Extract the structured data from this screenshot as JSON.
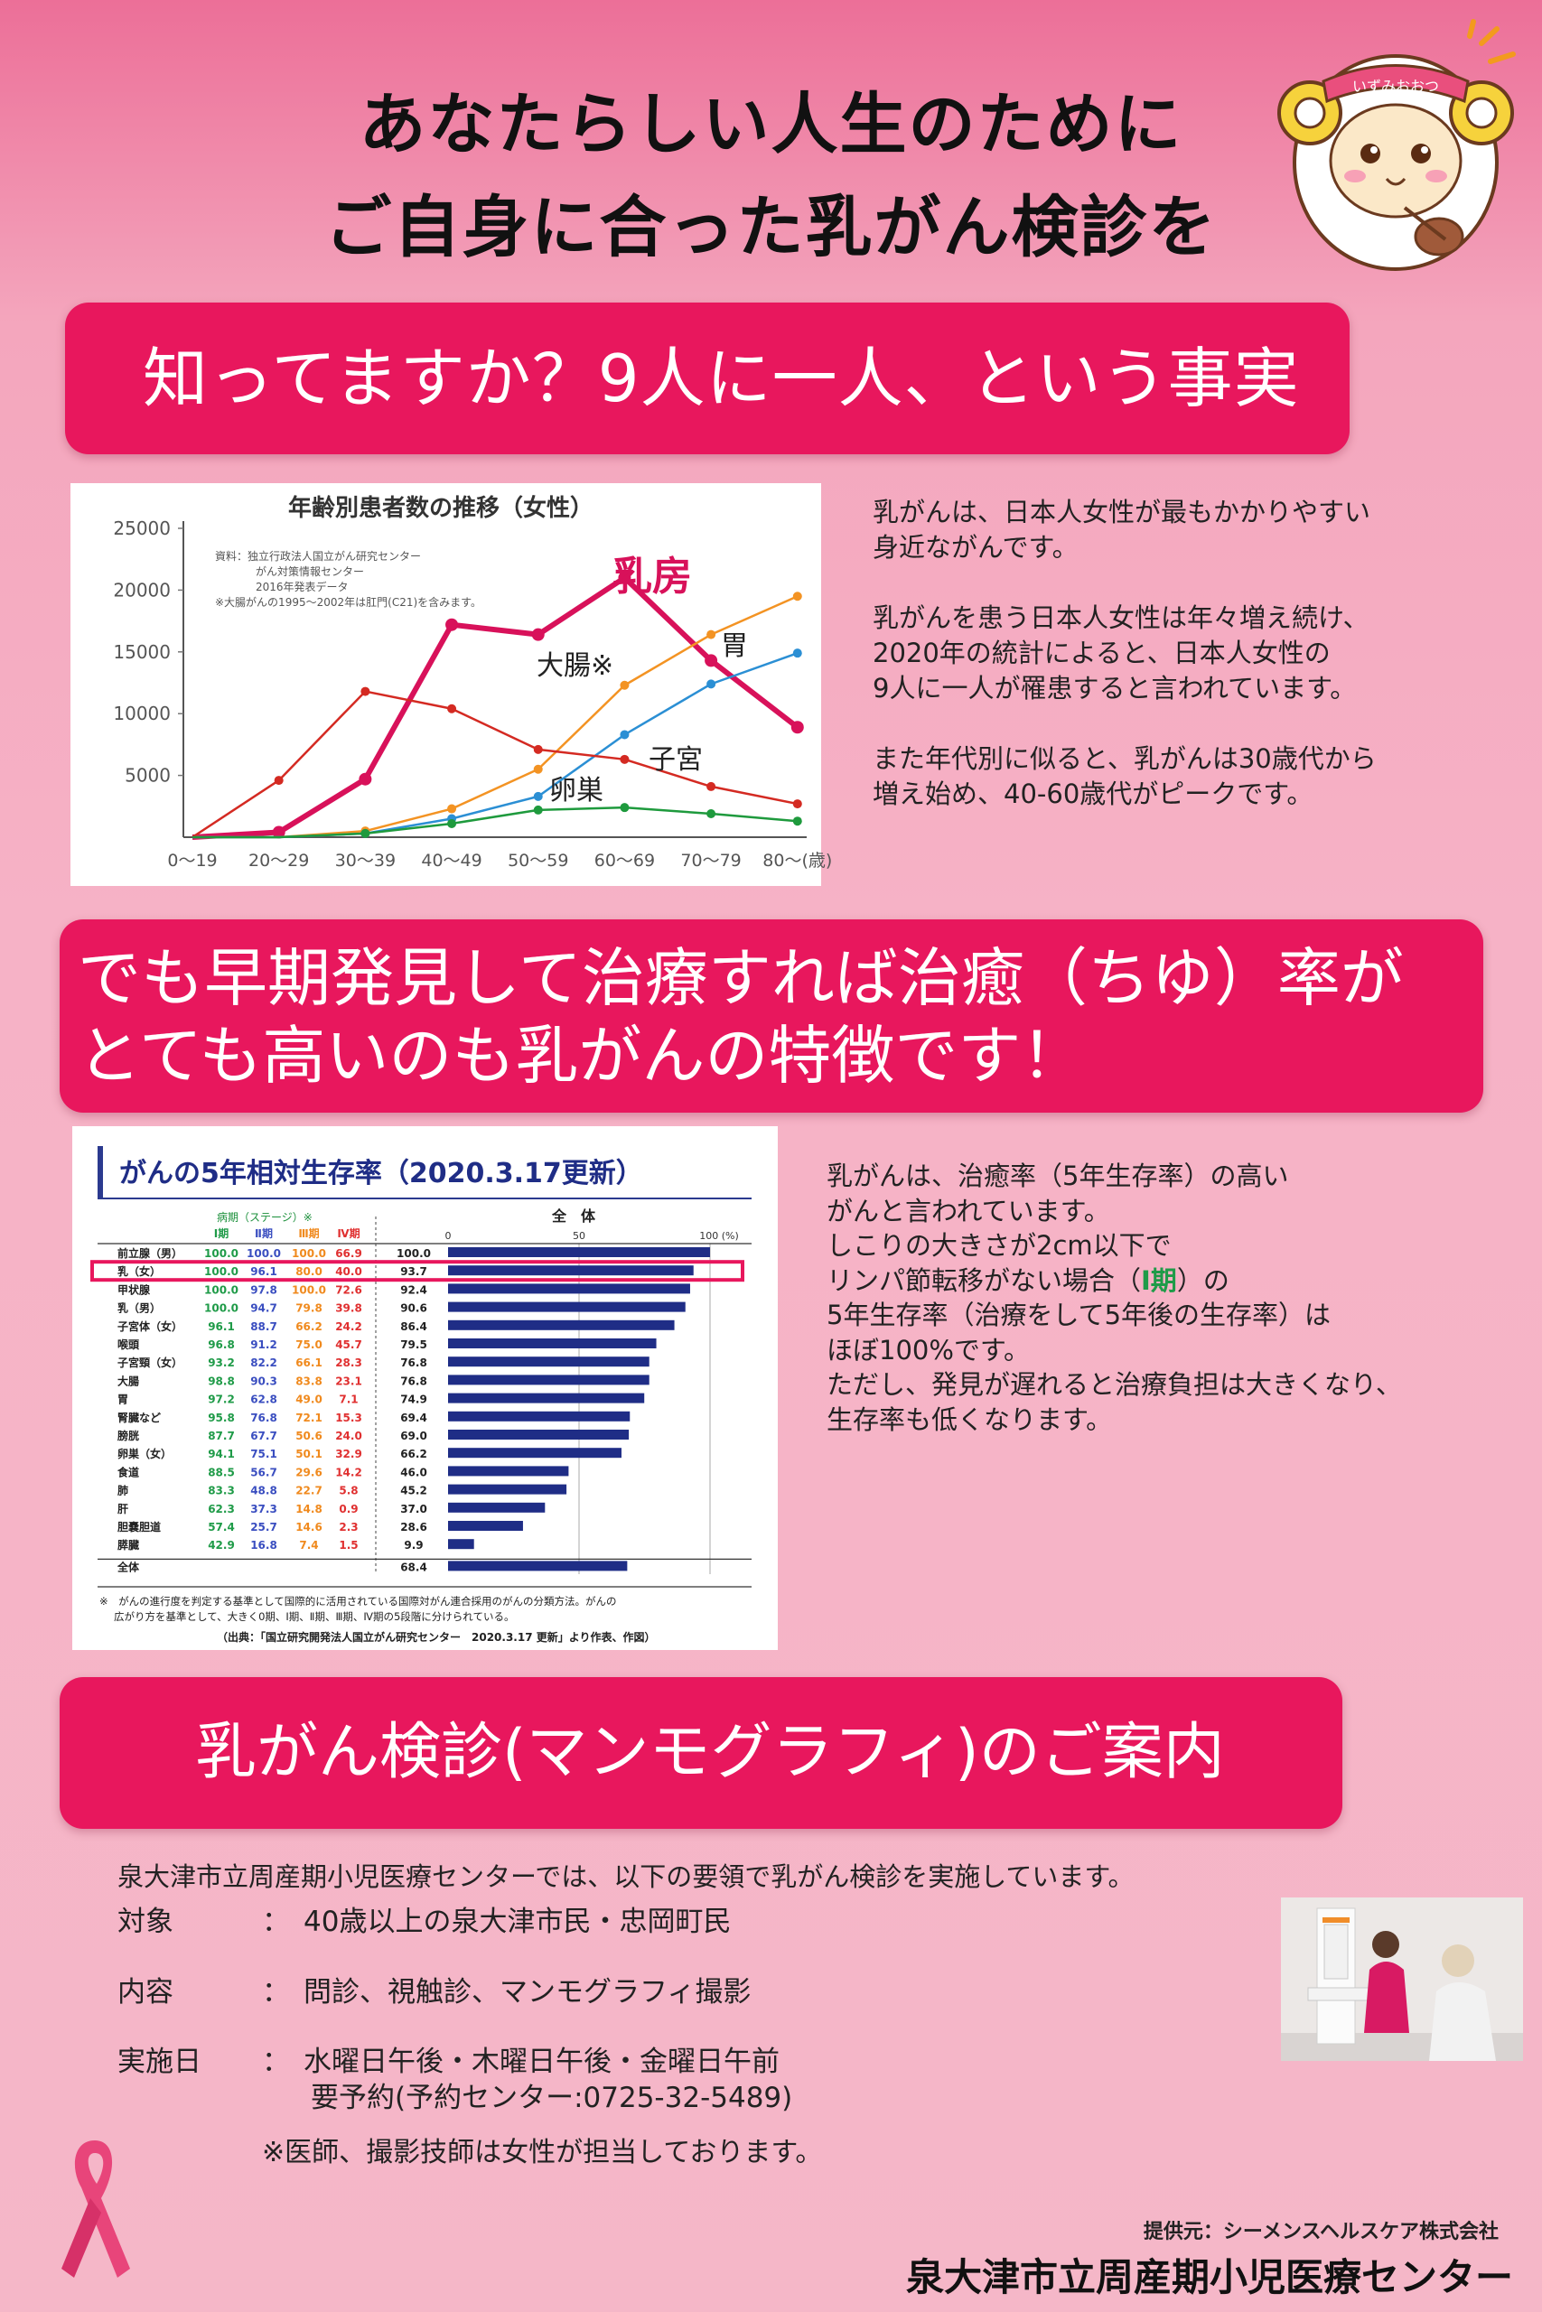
{
  "header": {
    "title_line1": "あなたらしい人生のために",
    "title_line2": "ご自身に合った乳がん検診を",
    "mascot_label": "いずみおおつ"
  },
  "section1": {
    "banner": "知ってますか？9人に一人、という事実",
    "text": "乳がんは、日本人女性が最もかかりやすい\n身近ながんです。\n\n乳がんを患う日本人女性は年々増え続け、\n2020年の統計によると、日本人女性の\n9人に一人が罹患すると言われています。\n\nまた年代別に似ると、乳がんは30歳代から\n増え始め、40-60歳代がピークです。"
  },
  "chart_data": {
    "type": "line",
    "title": "年齢別患者数の推移（女性）",
    "note": [
      "資料：独立行政法人国立がん研究センター",
      "がん対策情報センター",
      "2016年発表データ",
      "※大腸がんの1995～2002年は肛門(C21)を含みます。"
    ],
    "x": [
      "0～19",
      "20～29",
      "30～39",
      "40～49",
      "50～59",
      "60～69",
      "70～79",
      "80～(歳)"
    ],
    "ylim": [
      0,
      25000
    ],
    "yticks": [
      "25000",
      "20000",
      "15000",
      "10000",
      "5000"
    ],
    "series": [
      {
        "name": "乳房",
        "color": "#d8115a",
        "values": [
          0,
          400,
          4700,
          17200,
          16400,
          21000,
          14300,
          8900
        ]
      },
      {
        "name": "大腸※",
        "color": "#f39323",
        "values": [
          0,
          0,
          500,
          2300,
          5500,
          12300,
          16400,
          19500
        ]
      },
      {
        "name": "胃",
        "color": "#2b8fd4",
        "values": [
          0,
          0,
          300,
          1500,
          3300,
          8300,
          12400,
          14900
        ]
      },
      {
        "name": "子宮",
        "color": "#d42a22",
        "values": [
          0,
          4600,
          11800,
          10400,
          7100,
          6300,
          4100,
          2700
        ]
      },
      {
        "name": "卵巣",
        "color": "#1e9a3d",
        "values": [
          0,
          0,
          300,
          1100,
          2200,
          2400,
          1900,
          1300
        ]
      }
    ]
  },
  "section2": {
    "banner_line1": "でも早期発見して治療すれば治癒（ちゆ）率が",
    "banner_line2": "とても高いのも乳がんの特徴です！",
    "text_line1": "乳がんは、治癒率（5年生存率）の高い",
    "text_line2": "がんと言われています。",
    "text_line3": "しこりの大きさが2cm以下で",
    "text_line4a": "リンパ節転移がない場合（",
    "text_line4b": "Ⅰ期",
    "text_line4c": "）の",
    "text_line5": "5年生存率（治療をして5年後の生存率）は",
    "text_line6": "ほぼ100%です。",
    "text_line7": "ただし、発見が遅れると治療負担は大きくなり、",
    "text_line8": "生存率も低くなります。"
  },
  "survival_table": {
    "title": "がんの5年相対生存率（2020.3.17更新）",
    "stage_header": "病期（ステージ）※",
    "stages": [
      "Ⅰ期",
      "Ⅱ期",
      "Ⅲ期",
      "Ⅳ期"
    ],
    "overall_header": "全　体",
    "axis_ticks": [
      "0",
      "50",
      "100 (%)"
    ],
    "rows": [
      {
        "name": "前立腺（男）",
        "s1": "100.0",
        "s2": "100.0",
        "s3": "100.0",
        "s4": "66.9",
        "total": 100.0
      },
      {
        "name": "乳（女）",
        "s1": "100.0",
        "s2": "96.1",
        "s3": "80.0",
        "s4": "40.0",
        "total": 93.7
      },
      {
        "name": "甲状腺",
        "s1": "100.0",
        "s2": "97.8",
        "s3": "100.0",
        "s4": "72.6",
        "total": 92.4
      },
      {
        "name": "乳（男）",
        "s1": "100.0",
        "s2": "94.7",
        "s3": "79.8",
        "s4": "39.8",
        "total": 90.6
      },
      {
        "name": "子宮体（女）",
        "s1": "96.1",
        "s2": "88.7",
        "s3": "66.2",
        "s4": "24.2",
        "total": 86.4
      },
      {
        "name": "喉頭",
        "s1": "96.8",
        "s2": "91.2",
        "s3": "75.0",
        "s4": "45.7",
        "total": 79.5
      },
      {
        "name": "子宮頸（女）",
        "s1": "93.2",
        "s2": "82.2",
        "s3": "66.1",
        "s4": "28.3",
        "total": 76.8
      },
      {
        "name": "大腸",
        "s1": "98.8",
        "s2": "90.3",
        "s3": "83.8",
        "s4": "23.1",
        "total": 76.8
      },
      {
        "name": "胃",
        "s1": "97.2",
        "s2": "62.8",
        "s3": "49.0",
        "s4": "7.1",
        "total": 74.9
      },
      {
        "name": "腎臓など",
        "s1": "95.8",
        "s2": "76.8",
        "s3": "72.1",
        "s4": "15.3",
        "total": 69.4
      },
      {
        "name": "膀胱",
        "s1": "87.7",
        "s2": "67.7",
        "s3": "50.6",
        "s4": "24.0",
        "total": 69.0
      },
      {
        "name": "卵巣（女）",
        "s1": "94.1",
        "s2": "75.1",
        "s3": "50.1",
        "s4": "32.9",
        "total": 66.2
      },
      {
        "name": "食道",
        "s1": "88.5",
        "s2": "56.7",
        "s3": "29.6",
        "s4": "14.2",
        "total": 46.0
      },
      {
        "name": "肺",
        "s1": "83.3",
        "s2": "48.8",
        "s3": "22.7",
        "s4": "5.8",
        "total": 45.2
      },
      {
        "name": "肝",
        "s1": "62.3",
        "s2": "37.3",
        "s3": "14.8",
        "s4": "0.9",
        "total": 37.0
      },
      {
        "name": "胆嚢胆道",
        "s1": "57.4",
        "s2": "25.7",
        "s3": "14.6",
        "s4": "2.3",
        "total": 28.6
      },
      {
        "name": "膵臓",
        "s1": "42.9",
        "s2": "16.8",
        "s3": "7.4",
        "s4": "1.5",
        "total": 9.9
      },
      {
        "name": "全体",
        "s1": "",
        "s2": "",
        "s3": "",
        "s4": "",
        "total": 68.4
      }
    ],
    "footnote1": "※　がんの進行度を判定する基準として国際的に活用されている国際対がん連合採用のがんの分類方法。がんの",
    "footnote2": "広がり方を基準として、大きく0期、Ⅰ期、Ⅱ期、Ⅲ期、Ⅳ期の5段階に分けられている。",
    "source": "（出典：「国立研究開発法人国立がん研究センター　2020.3.17 更新」より作表、作図）"
  },
  "section3": {
    "banner": "乳がん検診(マンモグラフィ)のご案内",
    "intro": "泉大津市立周産期小児医療センターでは、以下の要領で乳がん検診を実施しています。",
    "target_label": "対象",
    "target_value": "40歳以上の泉大津市民・忠岡町民",
    "content_label": "内容",
    "content_value": "問診、視触診、マンモグラフィ撮影",
    "date_label": "実施日",
    "date_value": "水曜日午後・木曜日午後・金曜日午前",
    "reservation": "要予約(予約センター:0725-32-5489)",
    "note": "※医師、撮影技師は女性が担当しております。",
    "colon": "："
  },
  "footer": {
    "provider": "提供元：シーメンスヘルスケア株式会社",
    "organization": "泉大津市立周産期小児医療センター"
  }
}
